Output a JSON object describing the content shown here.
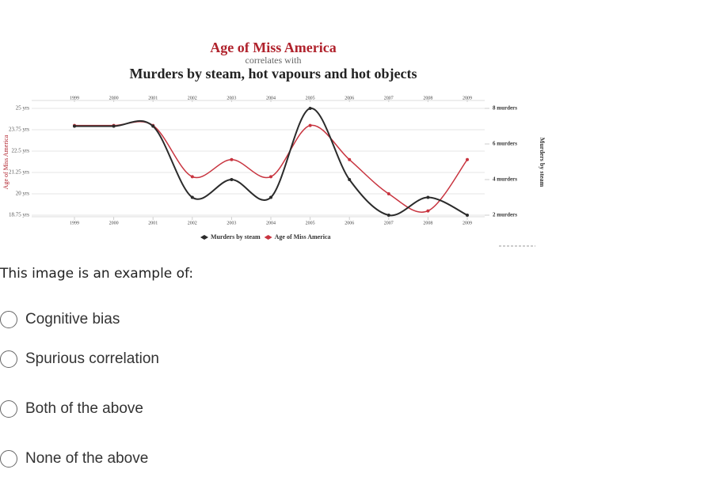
{
  "chart_data": {
    "type": "line",
    "title": "Age of Miss America",
    "subtitle": "correlates with",
    "title2": "Murders by steam, hot vapours and hot objects",
    "y_label": "Age of Miss America",
    "y2_label": "Murders by steam",
    "categories": [
      "1999",
      "2000",
      "2001",
      "2002",
      "2003",
      "2004",
      "2005",
      "2006",
      "2007",
      "2008",
      "2009"
    ],
    "series": [
      {
        "name": "Murders by steam",
        "color": "#2b2b2b",
        "axis": "y2",
        "values": [
          7,
          7,
          7,
          3,
          4,
          3,
          8,
          4,
          2,
          3,
          2
        ]
      },
      {
        "name": "Age of Miss America",
        "color": "#c8343f",
        "values": [
          24,
          24,
          24,
          21,
          22,
          21,
          24,
          22,
          20,
          19,
          22
        ]
      }
    ],
    "ylim": [
      18.75,
      25
    ],
    "yticks": [
      {
        "value": 18.75,
        "label": "18.75 yrs"
      },
      {
        "value": 20,
        "label": "20 yrs"
      },
      {
        "value": 21.25,
        "label": "21.25 yrs"
      },
      {
        "value": 22.5,
        "label": "22.5 yrs"
      },
      {
        "value": 23.75,
        "label": "23.75 yrs"
      },
      {
        "value": 25,
        "label": "25 yrs"
      }
    ],
    "y2lim": [
      2,
      8
    ],
    "y2ticks": [
      {
        "value": 2,
        "label": "2 murders"
      },
      {
        "value": 4,
        "label": "4 murders"
      },
      {
        "value": 6,
        "label": "6 murders"
      },
      {
        "value": 8,
        "label": "8 murders"
      }
    ],
    "grid": true
  },
  "question": {
    "prompt": "This image is an example of:",
    "options": [
      "Cognitive bias",
      "Spurious correlation",
      "Both of the above",
      "None of the above"
    ]
  }
}
